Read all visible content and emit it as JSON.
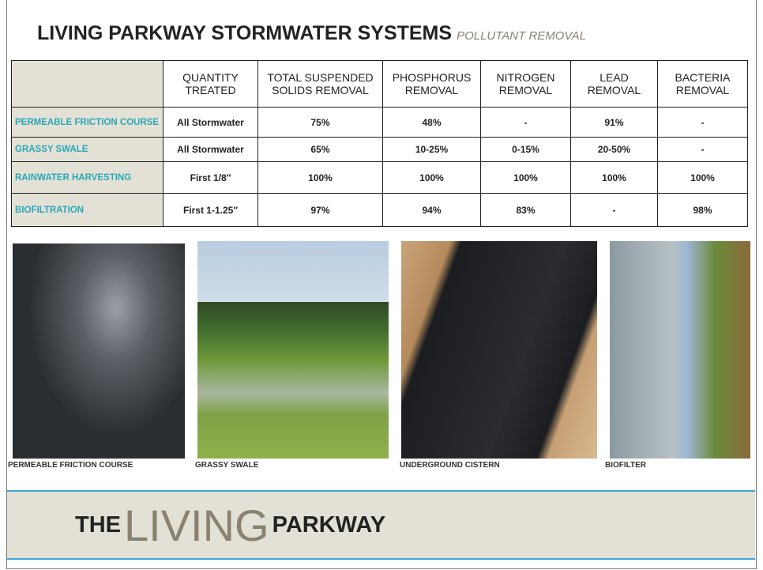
{
  "header": {
    "title": "LIVING PARKWAY STORMWATER SYSTEMS",
    "subtitle": "POLLUTANT REMOVAL"
  },
  "table": {
    "columns": [
      "QUANTITY TREATED",
      "TOTAL SUSPENDED SOLIDS REMOVAL",
      "PHOSPHORUS REMOVAL",
      "NITROGEN REMOVAL",
      "LEAD REMOVAL",
      "BACTERIA REMOVAL"
    ],
    "rows": [
      {
        "label": "PERMEABLE FRICTION COURSE",
        "cells": [
          "All Stormwater",
          "75%",
          "48%",
          "-",
          "91%",
          "-"
        ]
      },
      {
        "label": "GRASSY SWALE",
        "cells": [
          "All Stormwater",
          "65%",
          "10-25%",
          "0-15%",
          "20-50%",
          "-"
        ]
      },
      {
        "label": "RAINWATER HARVESTING",
        "cells": [
          "First 1/8″",
          "100%",
          "100%",
          "100%",
          "100%",
          "100%"
        ]
      },
      {
        "label": "BIOFILTRATION",
        "cells": [
          "First 1-1.25″",
          "97%",
          "94%",
          "83%",
          "-",
          "98%"
        ]
      }
    ]
  },
  "photos": [
    {
      "caption": "PERMEABLE FRICTION COURSE"
    },
    {
      "caption": "GRASSY SWALE"
    },
    {
      "caption": "UNDERGROUND CISTERN"
    },
    {
      "caption": "BIOFILTER"
    }
  ],
  "footer": {
    "the": "THE",
    "living": "LIVING",
    "parkway": "PARKWAY"
  }
}
